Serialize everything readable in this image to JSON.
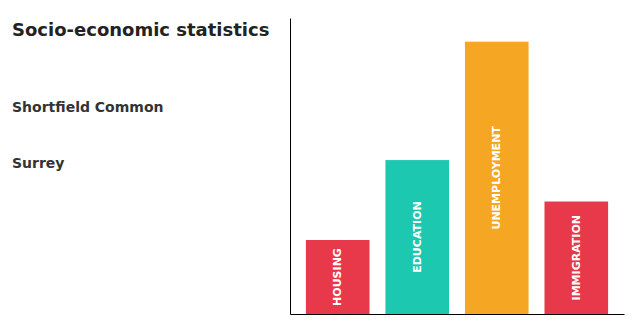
{
  "chart_data": {
    "type": "bar",
    "title": "Socio-economic statistics",
    "subtitle": [
      "Shortfield Common",
      "Surrey"
    ],
    "categories": [
      "HOUSING",
      "EDUCATION",
      "UNEMPLOYMENT",
      "IMMIGRATION"
    ],
    "values": [
      0.25,
      0.52,
      0.92,
      0.38
    ],
    "colors": [
      "#e8394a",
      "#1dc8b0",
      "#f5a623",
      "#e8394a"
    ],
    "ylim": [
      0,
      1
    ],
    "tick_labels": false
  }
}
